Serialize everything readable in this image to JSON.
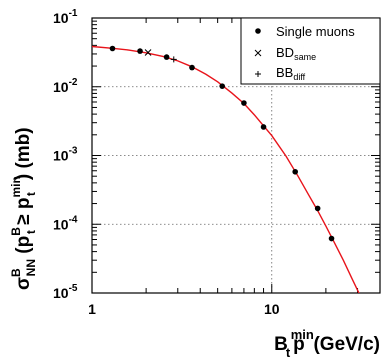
{
  "chart_data": {
    "type": "scatter",
    "xscale": "log",
    "yscale": "log",
    "xlim": [
      1,
      40
    ],
    "ylim": [
      1e-05,
      0.1
    ],
    "x_ticks": [
      {
        "value": 1,
        "label": "1"
      },
      {
        "value": 10,
        "label": "10"
      }
    ],
    "y_ticks": [
      {
        "value": 0.1,
        "base": "10",
        "exp": "-1"
      },
      {
        "value": 0.01,
        "base": "10",
        "exp": "-2"
      },
      {
        "value": 0.001,
        "base": "10",
        "exp": "-3"
      },
      {
        "value": 0.0001,
        "base": "10",
        "exp": "-4"
      },
      {
        "value": 1e-05,
        "base": "10",
        "exp": "-5"
      }
    ],
    "gridlines": "dotted, at major decades",
    "legend_position": "top-right",
    "xlabel": {
      "main": "B p",
      "sub": "t",
      "sup": "min",
      "unit": " (GeV/c)"
    },
    "ylabel": {
      "sigma": "σ",
      "sigma_sup": "B",
      "sigma_sub": "NN",
      "open": " (p",
      "p1_sup": "B",
      "p1_sub": "t",
      "geq": " ≥ p",
      "p2_sup": "min",
      "p2_sub": "t",
      "close": ") (mb)"
    },
    "series": [
      {
        "name": "Single muons",
        "name_sub": "",
        "marker": "dot",
        "points": [
          {
            "x": 1.3,
            "y": 0.036
          },
          {
            "x": 1.85,
            "y": 0.033
          },
          {
            "x": 2.6,
            "y": 0.027
          },
          {
            "x": 3.6,
            "y": 0.019
          },
          {
            "x": 5.3,
            "y": 0.0102
          },
          {
            "x": 7.0,
            "y": 0.0058
          },
          {
            "x": 9.0,
            "y": 0.0026
          },
          {
            "x": 13.5,
            "y": 0.00058
          },
          {
            "x": 18.0,
            "y": 0.00017
          },
          {
            "x": 21.5,
            "y": 6.2e-05
          }
        ]
      },
      {
        "name": "BD",
        "name_sub": "same",
        "marker": "cross",
        "points": [
          {
            "x": 2.05,
            "y": 0.0315
          }
        ]
      },
      {
        "name": "BB",
        "name_sub": "diff",
        "marker": "plus",
        "points": [
          {
            "x": 2.85,
            "y": 0.025
          }
        ]
      }
    ],
    "fit_curve": {
      "color": "#e8141b",
      "points": [
        {
          "x": 1.0,
          "y": 0.0385
        },
        {
          "x": 1.3,
          "y": 0.0362
        },
        {
          "x": 1.6,
          "y": 0.0342
        },
        {
          "x": 2.0,
          "y": 0.0312
        },
        {
          "x": 2.5,
          "y": 0.0275
        },
        {
          "x": 3.0,
          "y": 0.0238
        },
        {
          "x": 3.6,
          "y": 0.0195
        },
        {
          "x": 4.3,
          "y": 0.0152
        },
        {
          "x": 5.0,
          "y": 0.0118
        },
        {
          "x": 6.0,
          "y": 0.0081
        },
        {
          "x": 7.0,
          "y": 0.0057
        },
        {
          "x": 8.0,
          "y": 0.0039
        },
        {
          "x": 9.0,
          "y": 0.0027
        },
        {
          "x": 10.0,
          "y": 0.00195
        },
        {
          "x": 12.0,
          "y": 0.00098
        },
        {
          "x": 14.0,
          "y": 0.0005
        },
        {
          "x": 16.0,
          "y": 0.00027
        },
        {
          "x": 18.0,
          "y": 0.000158
        },
        {
          "x": 20.0,
          "y": 9.4e-05
        },
        {
          "x": 22.0,
          "y": 5.8e-05
        },
        {
          "x": 25.0,
          "y": 3e-05
        },
        {
          "x": 28.0,
          "y": 1.6e-05
        },
        {
          "x": 31.0,
          "y": 9.2e-06
        }
      ]
    }
  }
}
